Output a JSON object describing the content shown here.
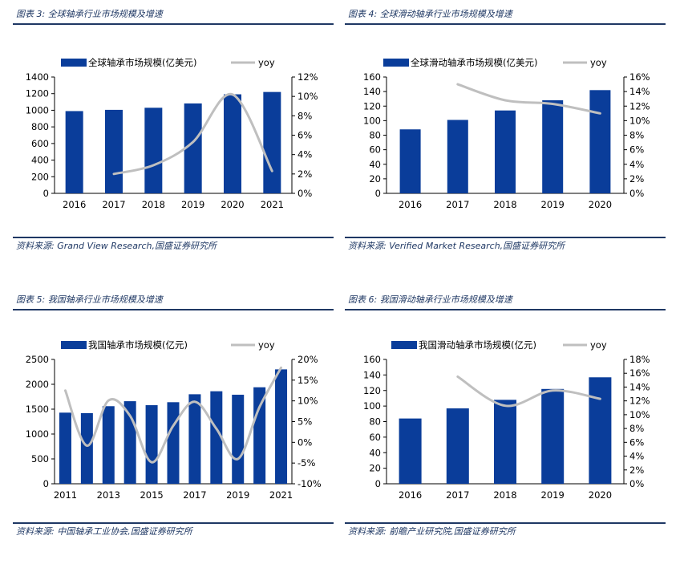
{
  "bar_color": "#0a3d9a",
  "line_color": "#bfbfbf",
  "panels": [
    {
      "caption": "图表 3:  全球轴承行业市场规模及增速",
      "source": "资料来源:  Grand View Research,国盛证券研究所",
      "chart_data": {
        "type": "bar",
        "categories": [
          "2016",
          "2017",
          "2018",
          "2019",
          "2020",
          "2021"
        ],
        "series": [
          {
            "name": "全球轴承市场规模(亿美元)",
            "type": "bar",
            "axis": "left",
            "values": [
              990,
              1005,
              1030,
              1082,
              1192,
              1220
            ]
          },
          {
            "name": "yoy",
            "type": "line",
            "axis": "right",
            "values": [
              null,
              0.02,
              0.029,
              0.053,
              0.102,
              0.023
            ]
          }
        ],
        "y_left": {
          "min": 0,
          "max": 1400,
          "step": 200,
          "ticks": [
            "0",
            "200",
            "400",
            "600",
            "800",
            "1000",
            "1200",
            "1400"
          ]
        },
        "y_right": {
          "min": 0,
          "max": 0.12,
          "step": 0.02,
          "ticks": [
            "0%",
            "2%",
            "4%",
            "6%",
            "8%",
            "10%",
            "12%"
          ]
        },
        "x_ticks": [
          "2016",
          "2017",
          "2018",
          "2019",
          "2020",
          "2021"
        ],
        "grid": false,
        "legend": "top"
      }
    },
    {
      "caption": "图表 4:  全球滑动轴承行业市场规模及增速",
      "source": "资料来源:  Verified Market Research,国盛证券研究所",
      "chart_data": {
        "type": "bar",
        "categories": [
          "2016",
          "2017",
          "2018",
          "2019",
          "2020"
        ],
        "series": [
          {
            "name": "全球滑动轴承市场规模(亿美元)",
            "type": "bar",
            "axis": "left",
            "values": [
              88,
              101,
              114,
              128,
              142
            ]
          },
          {
            "name": "yoy",
            "type": "line",
            "axis": "right",
            "values": [
              null,
              0.15,
              0.128,
              0.123,
              0.11
            ]
          }
        ],
        "y_left": {
          "min": 0,
          "max": 160,
          "step": 20,
          "ticks": [
            "0",
            "20",
            "40",
            "60",
            "80",
            "100",
            "120",
            "140",
            "160"
          ]
        },
        "y_right": {
          "min": 0,
          "max": 0.16,
          "step": 0.02,
          "ticks": [
            "0%",
            "2%",
            "4%",
            "6%",
            "8%",
            "10%",
            "12%",
            "14%",
            "16%"
          ]
        },
        "x_ticks": [
          "2016",
          "2017",
          "2018",
          "2019",
          "2020"
        ],
        "grid": false,
        "legend": "top"
      }
    },
    {
      "caption": "图表 5:  我国轴承行业市场规模及增速",
      "source": "资料来源:  中国轴承工业协会,国盛证券研究所",
      "chart_data": {
        "type": "bar",
        "categories": [
          "2011",
          "2012",
          "2013",
          "2014",
          "2015",
          "2016",
          "2017",
          "2018",
          "2019",
          "2020",
          "2021"
        ],
        "series": [
          {
            "name": "我国轴承市场规模(亿元)",
            "type": "bar",
            "axis": "left",
            "values": [
              1430,
              1420,
              1560,
              1660,
              1580,
              1640,
              1800,
              1860,
              1790,
              1940,
              2300
            ]
          },
          {
            "name": "yoy",
            "type": "line",
            "axis": "right",
            "values": [
              0.125,
              -0.008,
              0.101,
              0.064,
              -0.048,
              0.04,
              0.098,
              0.033,
              -0.04,
              0.085,
              0.18
            ]
          }
        ],
        "y_left": {
          "min": 0,
          "max": 2500,
          "step": 500,
          "ticks": [
            "0",
            "500",
            "1000",
            "1500",
            "2000",
            "2500"
          ]
        },
        "y_right": {
          "min": -0.1,
          "max": 0.2,
          "step": 0.05,
          "ticks": [
            "-10%",
            "-5%",
            "0%",
            "5%",
            "10%",
            "15%",
            "20%"
          ]
        },
        "x_ticks": [
          "2011",
          "2013",
          "2015",
          "2017",
          "2019",
          "2021"
        ],
        "grid": false,
        "legend": "top"
      }
    },
    {
      "caption": "图表 6:  我国滑动轴承行业市场规模及增速",
      "source": "资料来源:  前瞻产业研究院,国盛证券研究所",
      "chart_data": {
        "type": "bar",
        "categories": [
          "2016",
          "2017",
          "2018",
          "2019",
          "2020"
        ],
        "series": [
          {
            "name": "我国滑动轴承市场规模(亿元)",
            "type": "bar",
            "axis": "left",
            "values": [
              84,
              97,
              108,
              122,
              137
            ]
          },
          {
            "name": "yoy",
            "type": "line",
            "axis": "right",
            "values": [
              null,
              0.155,
              0.113,
              0.135,
              0.123
            ]
          }
        ],
        "y_left": {
          "min": 0,
          "max": 160,
          "step": 20,
          "ticks": [
            "0",
            "20",
            "40",
            "60",
            "80",
            "100",
            "120",
            "140",
            "160"
          ]
        },
        "y_right": {
          "min": 0,
          "max": 0.18,
          "step": 0.02,
          "ticks": [
            "0%",
            "2%",
            "4%",
            "6%",
            "8%",
            "10%",
            "12%",
            "14%",
            "16%",
            "18%"
          ]
        },
        "x_ticks": [
          "2016",
          "2017",
          "2018",
          "2019",
          "2020"
        ],
        "grid": false,
        "legend": "top"
      }
    }
  ]
}
